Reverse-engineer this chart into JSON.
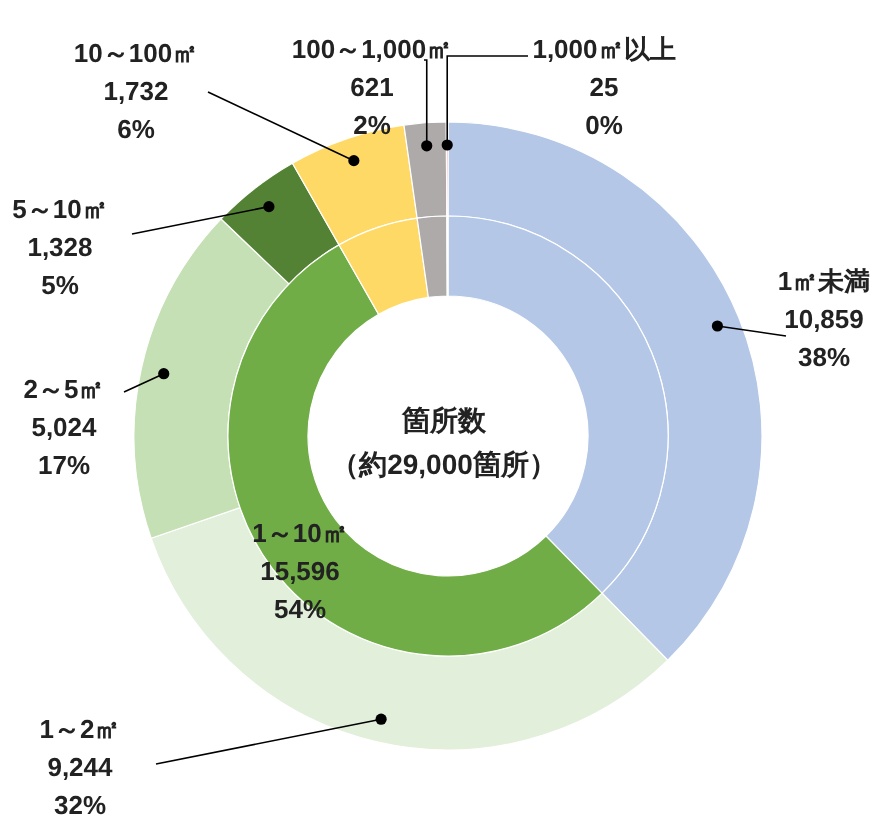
{
  "chart_data": [
    {
      "type": "donut",
      "categories": [
        "1㎡未満",
        "1～2㎡",
        "2～5㎡",
        "5～10㎡",
        "10～100㎡",
        "100～1,000㎡",
        "1,000㎡以上"
      ],
      "values": [
        10859,
        9244,
        5024,
        1328,
        1732,
        621,
        25
      ],
      "colors": [
        "#b4c7e7",
        "#e2efda",
        "#c5e0b4",
        "#548235",
        "#ffd966",
        "#aeaaaa",
        "#ff7c80"
      ],
      "value_labels": [
        "10,859\n38%",
        "9,244\n32%",
        "5,024\n17%",
        "1,328\n5%",
        "1,732\n6%",
        "621\n2%",
        "25\n0%"
      ]
    },
    {
      "type": "donut",
      "title": "箇所数",
      "subtitle": "（約29,000箇所）",
      "categories": [
        null,
        "1～10㎡",
        null,
        null,
        null
      ],
      "values": [
        10859,
        15596,
        1732,
        621,
        25
      ],
      "colors": [
        "#b4c7e7",
        "#70ad47",
        "#ffd966",
        "#aeaaaa",
        "#ff7c80"
      ],
      "value_labels": [
        null,
        "15,596\n54%",
        null,
        null,
        null
      ]
    }
  ]
}
